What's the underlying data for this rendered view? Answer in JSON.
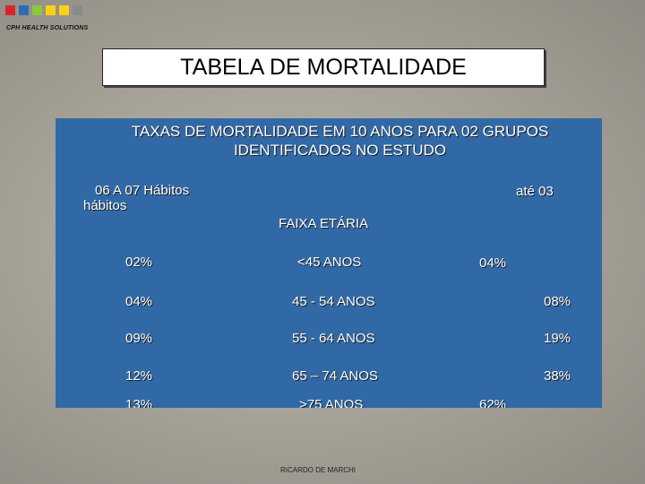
{
  "logo": {
    "colors": [
      "#d9232d",
      "#2e6bb4",
      "#8dc63f",
      "#f7d117",
      "#f7d117",
      "#8a8a8a"
    ]
  },
  "brand": "CPH HEALTH SOLUTIONS",
  "title": "TABELA DE MORTALIDADE",
  "panel": {
    "heading_line1": "TAXAS DE MORTALIDADE EM 10 ANOS PARA 02 GRUPOS",
    "heading_line2": "IDENTIFICADOS NO ESTUDO",
    "left_header_line1": "06 A 07 Hábitos",
    "left_header_line2": "hábitos",
    "right_header": "até 03",
    "middle_header": "FAIXA ETÁRIA"
  },
  "rows": [
    {
      "left": "02%",
      "age": "<45 ANOS",
      "right": "04%"
    },
    {
      "left": "04%",
      "age": "45 - 54 ANOS",
      "right": "08%"
    },
    {
      "left": "09%",
      "age": "55 - 64 ANOS",
      "right": "19%"
    },
    {
      "left": "12%",
      "age": "65 – 74 ANOS",
      "right": "38%"
    },
    {
      "left": "13%",
      "age": ">75 ANOS",
      "right": "62%"
    }
  ],
  "author": "RICARDO DE MARCHI"
}
